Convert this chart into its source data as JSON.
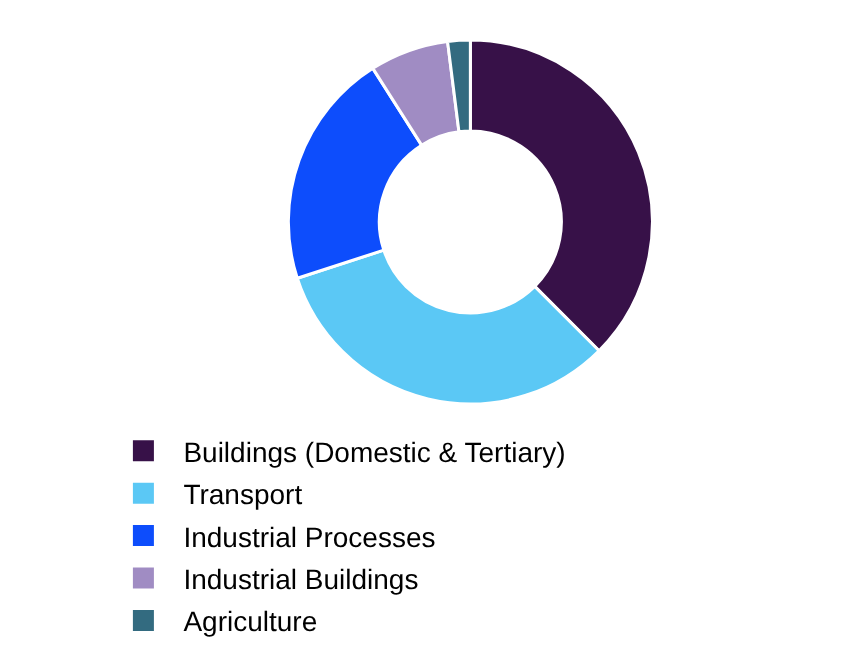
{
  "chart_data": {
    "type": "donut",
    "categories": [
      "Buildings (Domestic & Tertiary)",
      "Transport",
      "Industrial Processes",
      "Industrial Buildings",
      "Agriculture"
    ],
    "values": [
      37.5,
      32.5,
      21,
      7,
      2
    ],
    "colors": [
      "#371148",
      "#5bc8f5",
      "#0d4dfc",
      "#a08cc3",
      "#336b80"
    ],
    "legend": "bottom"
  }
}
